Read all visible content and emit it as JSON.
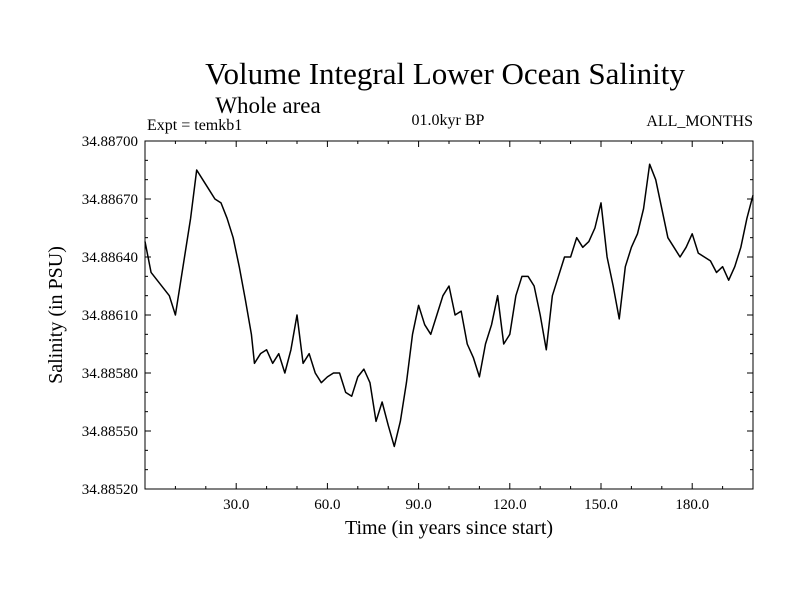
{
  "chart_data": {
    "type": "line",
    "title": "Volume Integral Lower Ocean Salinity",
    "subtitle": "Whole area",
    "left_label": "Expt = temkb1",
    "center_label": "01.0kyr BP",
    "right_label": "ALL_MONTHS",
    "xlabel": "Time (in years since start)",
    "ylabel": "Salinity (in PSU)",
    "xlim": [
      0,
      200
    ],
    "ylim": [
      34.8852,
      34.887
    ],
    "x_ticks": [
      {
        "value": 30,
        "label": "30.0"
      },
      {
        "value": 60,
        "label": "60.0"
      },
      {
        "value": 90,
        "label": "90.0"
      },
      {
        "value": 120,
        "label": "120.0"
      },
      {
        "value": 150,
        "label": "150.0"
      },
      {
        "value": 180,
        "label": "180.0"
      }
    ],
    "y_ticks": [
      {
        "value": 34.8852,
        "label": "34.88520"
      },
      {
        "value": 34.8855,
        "label": "34.88550"
      },
      {
        "value": 34.8858,
        "label": "34.88580"
      },
      {
        "value": 34.8861,
        "label": "34.88610"
      },
      {
        "value": 34.8864,
        "label": "34.88640"
      },
      {
        "value": 34.8867,
        "label": "34.88670"
      },
      {
        "value": 34.887,
        "label": "34.88700"
      }
    ],
    "series": [
      {
        "name": "Salinity",
        "x": [
          0,
          2,
          5,
          8,
          10,
          13,
          15,
          17,
          19,
          21,
          23,
          25,
          27,
          29,
          31,
          33,
          35,
          36,
          38,
          40,
          42,
          44,
          46,
          48,
          50,
          52,
          54,
          56,
          58,
          60,
          62,
          64,
          66,
          68,
          70,
          72,
          74,
          76,
          78,
          80,
          82,
          84,
          86,
          88,
          90,
          92,
          94,
          96,
          98,
          100,
          102,
          104,
          106,
          108,
          110,
          112,
          114,
          116,
          118,
          120,
          122,
          124,
          126,
          128,
          130,
          132,
          134,
          136,
          138,
          140,
          142,
          144,
          146,
          148,
          150,
          152,
          154,
          156,
          158,
          160,
          162,
          164,
          166,
          168,
          170,
          172,
          174,
          176,
          178,
          180,
          182,
          184,
          186,
          188,
          190,
          192,
          194,
          196,
          198,
          200
        ],
        "values": [
          34.88648,
          34.88632,
          34.88626,
          34.8862,
          34.8861,
          34.8864,
          34.8866,
          34.88685,
          34.8868,
          34.88675,
          34.8867,
          34.88668,
          34.8866,
          34.8865,
          34.88635,
          34.88618,
          34.886,
          34.88585,
          34.8859,
          34.88592,
          34.88585,
          34.8859,
          34.8858,
          34.88592,
          34.8861,
          34.88585,
          34.8859,
          34.8858,
          34.88575,
          34.88578,
          34.8858,
          34.8858,
          34.8857,
          34.88568,
          34.88578,
          34.88582,
          34.88575,
          34.88555,
          34.88565,
          34.88553,
          34.88542,
          34.88555,
          34.88575,
          34.886,
          34.88615,
          34.88605,
          34.886,
          34.8861,
          34.8862,
          34.88625,
          34.8861,
          34.88612,
          34.88595,
          34.88588,
          34.88578,
          34.88595,
          34.88605,
          34.8862,
          34.88595,
          34.886,
          34.8862,
          34.8863,
          34.8863,
          34.88625,
          34.8861,
          34.88592,
          34.8862,
          34.8863,
          34.8864,
          34.8864,
          34.8865,
          34.88645,
          34.88648,
          34.88655,
          34.88668,
          34.8864,
          34.88625,
          34.88608,
          34.88635,
          34.88645,
          34.88652,
          34.88665,
          34.88688,
          34.8868,
          34.88665,
          34.8865,
          34.88645,
          34.8864,
          34.88645,
          34.88652,
          34.88642,
          34.8864,
          34.88638,
          34.88632,
          34.88635,
          34.88628,
          34.88635,
          34.88645,
          34.8866,
          34.88672
        ]
      }
    ]
  }
}
